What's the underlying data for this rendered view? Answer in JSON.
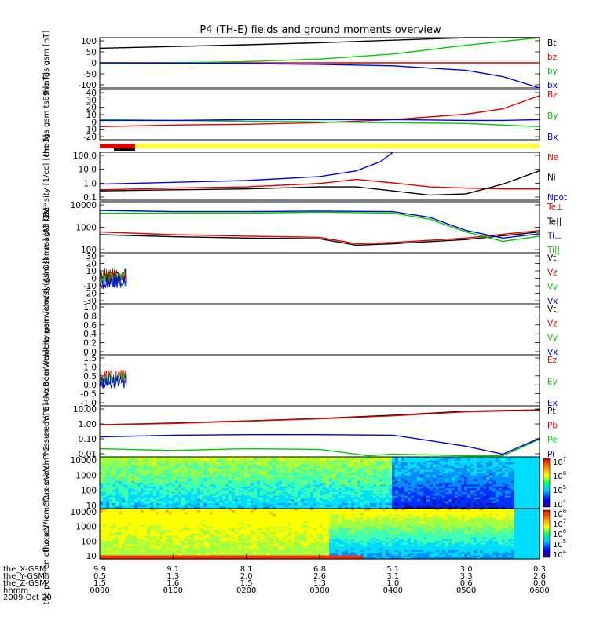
{
  "title": "P4 (TH-E) fields and ground moments overview",
  "colors": {
    "black": "#000000",
    "red": "#e00000",
    "green": "#00cc00",
    "blue": "#0000e0",
    "yellow": "#ffff33"
  },
  "colorbar_icon": "rainbow-colorbar",
  "chart_data": [
    {
      "type": "line",
      "ylabel": "the fgs gsm [nT]",
      "yticks": [
        "100",
        "50",
        "0",
        "-50",
        "-100"
      ],
      "ylim": [
        -100,
        100
      ],
      "legend": [
        {
          "name": "Bt",
          "color": "black"
        },
        {
          "name": "bz",
          "color": "red"
        },
        {
          "name": "by",
          "color": "green"
        },
        {
          "name": "bx",
          "color": "blue"
        }
      ],
      "series": [
        {
          "name": "Bt",
          "color": "black",
          "x": [
            0,
            60,
            120,
            180,
            240,
            300,
            360
          ],
          "y": [
            58,
            65,
            72,
            80,
            90,
            100,
            104
          ]
        },
        {
          "name": "bz",
          "color": "red",
          "x": [
            0,
            60,
            120,
            180,
            240,
            300,
            360
          ],
          "y": [
            0,
            0,
            0,
            0,
            0,
            0,
            0
          ]
        },
        {
          "name": "by",
          "color": "green",
          "x": [
            0,
            60,
            120,
            180,
            240,
            300,
            360
          ],
          "y": [
            -2,
            0,
            5,
            15,
            35,
            70,
            100
          ]
        },
        {
          "name": "bx",
          "color": "blue",
          "x": [
            0,
            60,
            120,
            180,
            240,
            300,
            330,
            360
          ],
          "y": [
            0,
            -1,
            -3,
            -6,
            -12,
            -30,
            -55,
            -100
          ]
        }
      ]
    },
    {
      "type": "line",
      "ylabel": "the fgs gsm ts89 [nT]",
      "yticks": [
        "40",
        "30",
        "20",
        "10",
        "0",
        "-10",
        "-20"
      ],
      "ylim": [
        -25,
        40
      ],
      "legend": [
        {
          "name": "Bz",
          "color": "red"
        },
        {
          "name": "By",
          "color": "green"
        },
        {
          "name": "Bx",
          "color": "blue"
        }
      ],
      "series": [
        {
          "name": "Bz",
          "color": "red",
          "x": [
            0,
            60,
            120,
            180,
            240,
            300,
            330,
            360
          ],
          "y": [
            -8,
            -6,
            -5,
            -3,
            1,
            8,
            15,
            32
          ]
        },
        {
          "name": "By",
          "color": "green",
          "x": [
            0,
            60,
            120,
            180,
            240,
            300,
            330,
            360
          ],
          "y": [
            1,
            0,
            -1,
            -2,
            -3,
            -4,
            -6,
            -8
          ]
        },
        {
          "name": "Bx",
          "color": "blue",
          "x": [
            0,
            60,
            120,
            180,
            240,
            300,
            330,
            360
          ],
          "y": [
            0,
            0,
            1,
            1,
            1,
            0,
            0,
            1
          ]
        }
      ]
    },
    {
      "type": "line",
      "ylabel": "Density [1/cc] [cm-3]",
      "yticks": [
        "100.0",
        "10.0",
        "1.0",
        "0.1"
      ],
      "scale": "log",
      "ylim": [
        0.05,
        200
      ],
      "legend": [
        {
          "name": "Ne",
          "color": "red"
        },
        {
          "name": "Ni",
          "color": "black"
        },
        {
          "name": "Npot",
          "color": "blue"
        }
      ],
      "series": [
        {
          "name": "Ne",
          "color": "red",
          "x": [
            0,
            60,
            120,
            180,
            210,
            240,
            270,
            300,
            330,
            360
          ],
          "y": [
            0.3,
            0.4,
            0.5,
            0.9,
            1.8,
            1.0,
            0.5,
            0.4,
            0.35,
            0.35
          ]
        },
        {
          "name": "Ni",
          "color": "black",
          "x": [
            0,
            60,
            120,
            180,
            210,
            240,
            270,
            300,
            330,
            360
          ],
          "y": [
            0.25,
            0.3,
            0.35,
            0.5,
            0.5,
            0.25,
            0.12,
            0.15,
            0.8,
            8
          ]
        },
        {
          "name": "Npot",
          "color": "blue",
          "x": [
            0,
            60,
            120,
            180,
            210,
            230,
            240
          ],
          "y": [
            0.8,
            1.1,
            1.5,
            3,
            8,
            40,
            200
          ]
        }
      ]
    },
    {
      "type": "line",
      "ylabel": "magt3 [eV]",
      "yticks": [
        "10000",
        "1000",
        "100"
      ],
      "scale": "log",
      "ylim": [
        20,
        10000
      ],
      "legend": [
        {
          "name": "Te⊥",
          "color": "red"
        },
        {
          "name": "Te||",
          "color": "black"
        },
        {
          "name": "Ti⊥",
          "color": "blue"
        },
        {
          "name": "Ti||",
          "color": "green"
        }
      ],
      "series": [
        {
          "name": "Te⊥",
          "color": "red",
          "x": [
            0,
            60,
            120,
            180,
            210,
            240,
            300,
            360
          ],
          "y": [
            250,
            180,
            150,
            130,
            60,
            70,
            120,
            300
          ]
        },
        {
          "name": "Te||",
          "color": "black",
          "x": [
            0,
            60,
            120,
            180,
            210,
            240,
            300,
            360
          ],
          "y": [
            180,
            140,
            120,
            110,
            50,
            60,
            100,
            250
          ]
        },
        {
          "name": "Ti⊥",
          "color": "blue",
          "x": [
            0,
            60,
            120,
            180,
            240,
            270,
            300,
            330,
            360
          ],
          "y": [
            3500,
            3000,
            3000,
            3200,
            3000,
            1500,
            300,
            120,
            200
          ]
        },
        {
          "name": "Ti||",
          "color": "green",
          "x": [
            0,
            60,
            120,
            180,
            240,
            270,
            300,
            330,
            360
          ],
          "y": [
            2500,
            2500,
            2500,
            2800,
            2500,
            1200,
            250,
            80,
            150
          ]
        }
      ]
    },
    {
      "type": "line",
      "ylabel": "the peir velocity gsm [km/s] (All Qs)",
      "yticks": [
        "30",
        "20",
        "10",
        "0",
        "-10",
        "-20",
        "-30"
      ],
      "ylim": [
        -30,
        30
      ],
      "legend": [
        {
          "name": "Vt",
          "color": "black"
        },
        {
          "name": "Vz",
          "color": "red"
        },
        {
          "name": "Vy",
          "color": "green"
        },
        {
          "name": "Vx",
          "color": "blue"
        }
      ],
      "noise_end": 22
    },
    {
      "type": "line",
      "ylabel": "the peer velocity gsm [km/s] (All Qs)",
      "yticks": [
        "1.0",
        "0.8",
        "0.6",
        "0.4",
        "0.2",
        "0.0"
      ],
      "ylim": [
        0,
        1
      ],
      "legend": [
        {
          "name": "Vt",
          "color": "black"
        },
        {
          "name": "Vz",
          "color": "red"
        },
        {
          "name": "Vy",
          "color": "green"
        },
        {
          "name": "Vx",
          "color": "blue"
        }
      ]
    },
    {
      "type": "line",
      "ylabel": "E=-VxB [mV/m]",
      "yticks": [
        "1.5",
        "1.0",
        "0.5",
        "0.0",
        "-0.5",
        "-1.0"
      ],
      "ylim": [
        -1.0,
        1.5
      ],
      "legend": [
        {
          "name": "Ez",
          "color": "red"
        },
        {
          "name": "Ey",
          "color": "green"
        },
        {
          "name": "Ex",
          "color": "blue"
        }
      ],
      "noise_end": 22
    },
    {
      "type": "line",
      "ylabel": "Pressure [nPa]",
      "yticks": [
        "10.00",
        "1.00",
        "0.10",
        "0.01"
      ],
      "scale": "log",
      "ylim": [
        0.005,
        30
      ],
      "legend": [
        {
          "name": "Pt",
          "color": "black"
        },
        {
          "name": "Pb",
          "color": "red"
        },
        {
          "name": "Pe",
          "color": "green"
        },
        {
          "name": "Pi",
          "color": "blue"
        }
      ],
      "series": [
        {
          "name": "Pt",
          "color": "black",
          "x": [
            0,
            60,
            120,
            180,
            240,
            300,
            360
          ],
          "y": [
            1.2,
            1.6,
            2.3,
            3.5,
            6,
            12,
            15
          ]
        },
        {
          "name": "Pb",
          "color": "red",
          "x": [
            0,
            60,
            120,
            180,
            240,
            300,
            360
          ],
          "y": [
            1.2,
            1.5,
            2.2,
            3.3,
            5.5,
            11,
            14
          ]
        },
        {
          "name": "Pe",
          "color": "green",
          "x": [
            0,
            60,
            120,
            180,
            220,
            240,
            300,
            330,
            360
          ],
          "y": [
            0.02,
            0.015,
            0.02,
            0.018,
            0.006,
            0.008,
            0.006,
            0.006,
            0.1
          ]
        },
        {
          "name": "Pi",
          "color": "blue",
          "x": [
            0,
            60,
            120,
            180,
            240,
            270,
            300,
            330,
            360
          ],
          "y": [
            0.15,
            0.2,
            0.22,
            0.22,
            0.2,
            0.08,
            0.03,
            0.008,
            0.12
          ]
        }
      ]
    },
    {
      "type": "heatmap",
      "ylabel": "the peir en eflux eV/(cm^2-s-sr-eV)",
      "yticks": [
        "10000",
        "1000",
        "100",
        "10"
      ],
      "colorbar_ticks": [
        "10^7",
        "10^6",
        "10^5",
        "10^4"
      ]
    },
    {
      "type": "heatmap",
      "ylabel": "the peer en eflux eV/(cm^2-s-sr-eV)",
      "yticks": [
        "10000",
        "1000",
        "100",
        "10"
      ],
      "colorbar_ticks": [
        "10^8",
        "10^7",
        "10^6",
        "10^5",
        "10^4"
      ]
    }
  ],
  "xaxis": {
    "ticks": [
      "0000",
      "0100",
      "0200",
      "0300",
      "0400",
      "0500",
      "0600"
    ],
    "rows": [
      {
        "label": "the_X-GSM",
        "values": [
          "9.9",
          "9.1",
          "8.1",
          "6.8",
          "5.1",
          "3.0",
          "0.3"
        ]
      },
      {
        "label": "the_Y-GSM",
        "values": [
          "0.5",
          "1.3",
          "2.0",
          "2.6",
          "3.1",
          "3.3",
          "2.6"
        ]
      },
      {
        "label": "the_Z-GSM",
        "values": [
          "1.5",
          "1.6",
          "1.5",
          "1.3",
          "1.0",
          "0.6",
          "0.0"
        ]
      },
      {
        "label": "hhmm",
        "values": [
          "0000",
          "0100",
          "0200",
          "0300",
          "0400",
          "0500",
          "0600"
        ]
      }
    ],
    "date": "2009 Oct 20"
  }
}
